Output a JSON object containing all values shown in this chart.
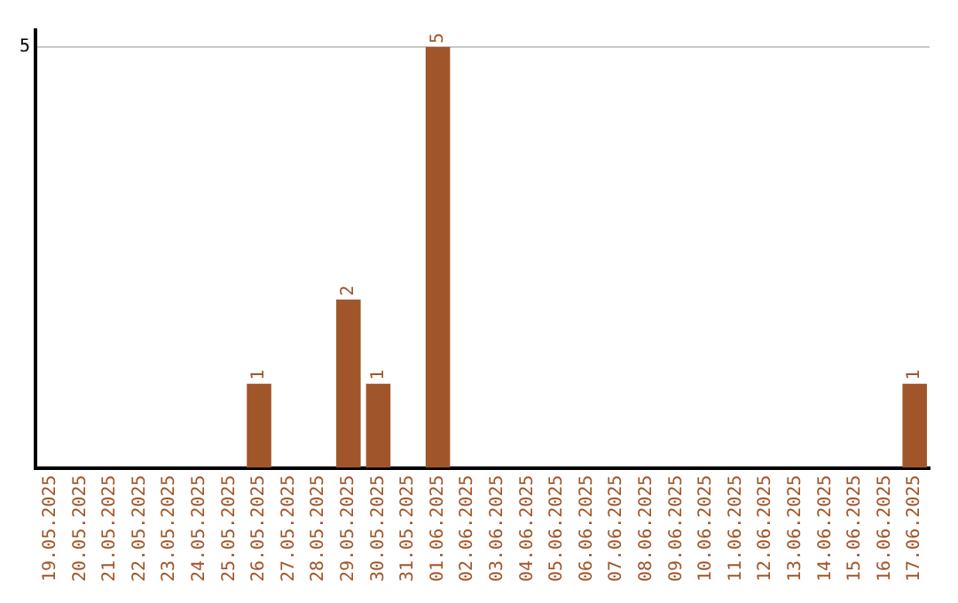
{
  "chart_data": {
    "type": "bar",
    "categories": [
      "19.05.2025",
      "20.05.2025",
      "21.05.2025",
      "22.05.2025",
      "23.05.2025",
      "24.05.2025",
      "25.05.2025",
      "26.05.2025",
      "27.05.2025",
      "28.05.2025",
      "29.05.2025",
      "30.05.2025",
      "31.05.2025",
      "01.06.2025",
      "02.06.2025",
      "03.06.2025",
      "04.06.2025",
      "05.06.2025",
      "06.06.2025",
      "07.06.2025",
      "08.06.2025",
      "09.06.2025",
      "10.06.2025",
      "11.06.2025",
      "12.06.2025",
      "13.06.2025",
      "14.06.2025",
      "15.06.2025",
      "16.06.2025",
      "17.06.2025"
    ],
    "values": [
      0,
      0,
      0,
      0,
      0,
      0,
      0,
      1,
      0,
      0,
      2,
      1,
      0,
      5,
      0,
      0,
      0,
      0,
      0,
      0,
      0,
      0,
      0,
      0,
      0,
      0,
      0,
      0,
      0,
      1
    ],
    "value_labels": [
      null,
      null,
      null,
      null,
      null,
      null,
      null,
      "1",
      null,
      null,
      "2",
      "1",
      null,
      "5",
      null,
      null,
      null,
      null,
      null,
      null,
      null,
      null,
      null,
      null,
      null,
      null,
      null,
      null,
      null,
      "1"
    ],
    "color": "#a0562a",
    "ylim": [
      0,
      5.2
    ],
    "yticks": [
      5
    ],
    "grid": "y",
    "legend": false
  }
}
